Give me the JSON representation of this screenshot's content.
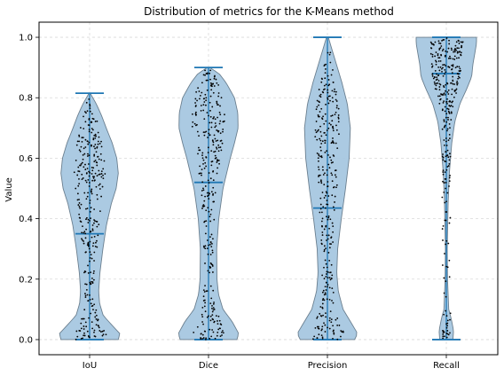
{
  "chart_data": {
    "type": "violin",
    "title": "Distribution of metrics for the K-Means method",
    "xlabel": "",
    "ylabel": "Value",
    "ylim": [
      -0.05,
      1.05
    ],
    "yticks": [
      "0.0",
      "0.2",
      "0.4",
      "0.6",
      "0.8",
      "1.0"
    ],
    "grid": true,
    "colors": {
      "violin_fill": "#a6c7e0",
      "violin_edge": "#6b7f8f",
      "stat_lines": "#1f77b4",
      "points": "#000000",
      "grid": "#d9d9d9"
    },
    "categories": [
      "IoU",
      "Dice",
      "Precision",
      "Recall"
    ],
    "series": [
      {
        "label": "IoU",
        "min": 0.0,
        "median": 0.35,
        "max": 0.815,
        "density": [
          [
            0.0,
            0.95
          ],
          [
            0.02,
            1.0
          ],
          [
            0.05,
            0.72
          ],
          [
            0.08,
            0.45
          ],
          [
            0.12,
            0.33
          ],
          [
            0.16,
            0.3
          ],
          [
            0.22,
            0.34
          ],
          [
            0.3,
            0.44
          ],
          [
            0.38,
            0.56
          ],
          [
            0.45,
            0.72
          ],
          [
            0.5,
            0.88
          ],
          [
            0.55,
            0.95
          ],
          [
            0.6,
            0.9
          ],
          [
            0.65,
            0.75
          ],
          [
            0.7,
            0.55
          ],
          [
            0.74,
            0.4
          ],
          [
            0.78,
            0.22
          ],
          [
            0.815,
            0.02
          ]
        ]
      },
      {
        "label": "Dice",
        "min": 0.0,
        "median": 0.52,
        "max": 0.9,
        "density": [
          [
            0.0,
            0.94
          ],
          [
            0.02,
            1.0
          ],
          [
            0.06,
            0.78
          ],
          [
            0.1,
            0.48
          ],
          [
            0.15,
            0.33
          ],
          [
            0.2,
            0.28
          ],
          [
            0.3,
            0.27
          ],
          [
            0.4,
            0.34
          ],
          [
            0.5,
            0.48
          ],
          [
            0.6,
            0.72
          ],
          [
            0.65,
            0.86
          ],
          [
            0.7,
            0.98
          ],
          [
            0.75,
            0.97
          ],
          [
            0.8,
            0.86
          ],
          [
            0.85,
            0.58
          ],
          [
            0.88,
            0.35
          ],
          [
            0.9,
            0.04
          ]
        ]
      },
      {
        "label": "Precision",
        "min": 0.0,
        "median": 0.435,
        "max": 1.0,
        "density": [
          [
            0.0,
            0.9
          ],
          [
            0.02,
            1.0
          ],
          [
            0.05,
            0.82
          ],
          [
            0.1,
            0.52
          ],
          [
            0.16,
            0.36
          ],
          [
            0.22,
            0.31
          ],
          [
            0.3,
            0.34
          ],
          [
            0.4,
            0.46
          ],
          [
            0.5,
            0.6
          ],
          [
            0.6,
            0.72
          ],
          [
            0.7,
            0.76
          ],
          [
            0.78,
            0.66
          ],
          [
            0.85,
            0.48
          ],
          [
            0.92,
            0.27
          ],
          [
            0.97,
            0.12
          ],
          [
            1.0,
            0.03
          ]
        ]
      },
      {
        "label": "Recall",
        "min": 0.0,
        "median": 0.88,
        "max": 1.0,
        "density": [
          [
            0.0,
            0.22
          ],
          [
            0.03,
            0.24
          ],
          [
            0.07,
            0.16
          ],
          [
            0.1,
            0.08
          ],
          [
            0.2,
            0.04
          ],
          [
            0.3,
            0.03
          ],
          [
            0.45,
            0.06
          ],
          [
            0.55,
            0.1
          ],
          [
            0.65,
            0.18
          ],
          [
            0.72,
            0.28
          ],
          [
            0.78,
            0.45
          ],
          [
            0.83,
            0.68
          ],
          [
            0.87,
            0.84
          ],
          [
            0.91,
            0.88
          ],
          [
            0.95,
            0.95
          ],
          [
            0.98,
            1.0
          ],
          [
            1.0,
            1.0
          ]
        ]
      }
    ],
    "points_per_violin": 320
  }
}
